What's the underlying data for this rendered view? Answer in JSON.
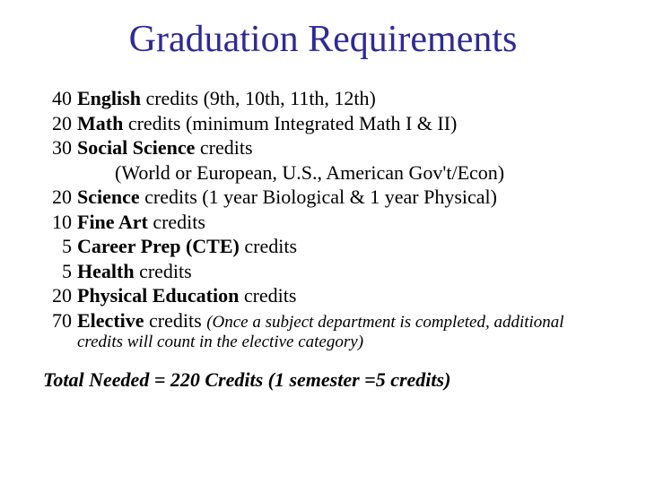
{
  "title_color": "#2f2a95",
  "text_color": "#000000",
  "background_color": "#ffffff",
  "title": "Graduation Requirements",
  "items": [
    {
      "credits": "40",
      "subject": "English",
      "rest": " credits (9th, 10th, 11th, 12th)"
    },
    {
      "credits": "20",
      "subject": "Math",
      "rest": " credits (minimum Integrated Math I & II)"
    },
    {
      "credits": "30",
      "subject": "Social Science",
      "rest": " credits"
    },
    {
      "indent": "(World or European, U.S., American Gov't/Econ)"
    },
    {
      "credits": "20",
      "subject": "Science",
      "rest": " credits (1 year Biological & 1 year Physical)"
    },
    {
      "credits": "10",
      "subject": "Fine Art",
      "rest": " credits"
    },
    {
      "credits": "5",
      "subject": "Career Prep (CTE)",
      "rest": " credits",
      "pad": true
    },
    {
      "credits": "5",
      "subject": "Health",
      "rest": " credits",
      "pad": true
    },
    {
      "credits": "20",
      "subject": "Physical Education",
      "rest": " credits"
    },
    {
      "credits": "70",
      "subject": "Elective",
      "rest": " credits ",
      "note": "(Once a subject department is completed, additional"
    },
    {
      "note_cont": "credits will count in the elective category)"
    }
  ],
  "total": "Total Needed = 220 Credits (1 semester =5 credits)"
}
